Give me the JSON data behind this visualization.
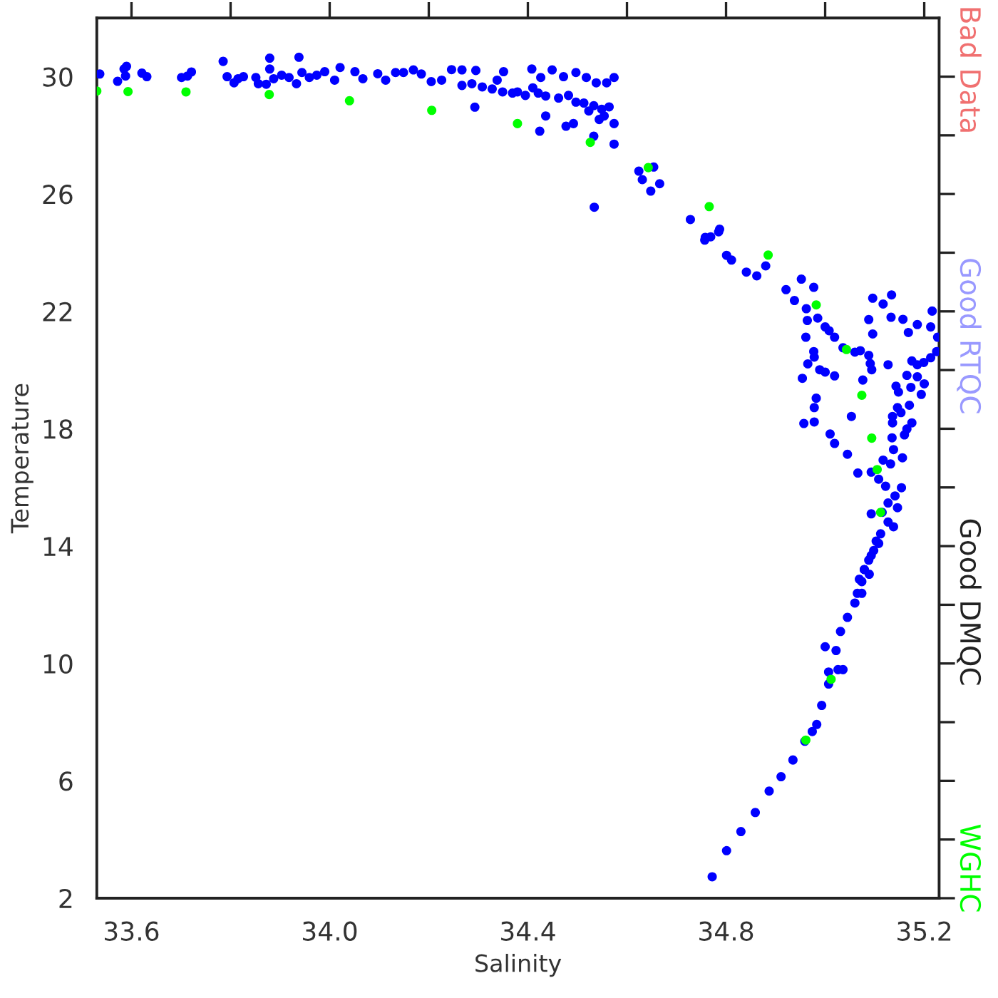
{
  "chart_data": {
    "type": "scatter",
    "xlabel": "Salinity",
    "ylabel": "Temperature",
    "xlim": [
      33.53,
      35.23
    ],
    "ylim": [
      2,
      32
    ],
    "xticks": [
      {
        "value": 33.6,
        "label": "33.6"
      },
      {
        "value": 33.8,
        "label": null
      },
      {
        "value": 34.0,
        "label": "34.0"
      },
      {
        "value": 34.2,
        "label": null
      },
      {
        "value": 34.4,
        "label": "34.4"
      },
      {
        "value": 34.6,
        "label": null
      },
      {
        "value": 34.8,
        "label": "34.8"
      },
      {
        "value": 35.0,
        "label": null
      },
      {
        "value": 35.2,
        "label": "35.2"
      }
    ],
    "yticks": [
      2,
      {
        "value": 4,
        "label": null
      },
      6,
      {
        "value": 8,
        "label": null
      },
      10,
      {
        "value": 12,
        "label": null
      },
      14,
      {
        "value": 16,
        "label": null
      },
      18,
      {
        "value": 20,
        "label": null
      },
      22,
      {
        "value": 24,
        "label": null
      },
      26,
      {
        "value": 28,
        "label": null
      },
      30
    ],
    "grid": false,
    "legend": "right",
    "marker": "circle",
    "annotations": [
      "Bad Data",
      "Good RTQC",
      "Good DMQC"
    ],
    "series": [
      {
        "color": "#0000ff",
        "x": [
          33.536,
          33.572,
          33.585,
          33.59,
          33.588,
          33.621,
          33.631,
          33.701,
          33.713,
          33.721,
          33.785,
          33.793,
          33.807,
          33.815,
          33.826,
          33.851,
          33.856,
          33.872,
          33.879,
          33.879,
          33.887,
          33.903,
          33.918,
          33.933,
          33.938,
          33.944,
          33.959,
          33.974,
          33.99,
          34.01,
          34.021,
          34.051,
          34.067,
          34.097,
          34.113,
          34.133,
          34.149,
          34.169,
          34.185,
          34.205,
          34.226,
          34.246,
          34.267,
          34.267,
          34.287,
          34.295,
          34.308,
          34.328,
          34.338,
          34.349,
          34.351,
          34.369,
          34.379,
          34.395,
          34.408,
          34.41,
          34.421,
          34.426,
          34.436,
          34.449,
          34.462,
          34.472,
          34.482,
          34.497,
          34.497,
          34.513,
          34.518,
          34.523,
          34.533,
          34.538,
          34.544,
          34.549,
          34.554,
          34.559,
          34.564,
          34.574,
          34.574,
          34.574,
          34.533,
          34.477,
          34.492,
          34.436,
          34.424,
          34.293,
          34.534,
          34.624,
          34.631,
          34.648,
          34.654,
          34.666,
          34.728,
          34.757,
          34.785,
          34.769,
          34.758,
          34.787,
          34.801,
          34.811,
          34.841,
          34.862,
          34.88,
          34.921,
          34.952,
          34.938,
          34.962,
          34.977,
          34.964,
          34.985,
          35.0,
          35.008,
          35.019,
          34.961,
          34.977,
          34.978,
          34.965,
          34.989,
          35.0,
          35.019,
          34.954,
          34.982,
          34.978,
          34.957,
          34.978,
          35.01,
          35.019,
          35.045,
          35.036,
          35.06,
          35.071,
          35.088,
          35.091,
          35.094,
          35.076,
          35.053,
          35.096,
          35.117,
          35.134,
          35.088,
          35.096,
          35.133,
          35.157,
          35.168,
          35.186,
          35.213,
          35.216,
          35.227,
          35.225,
          35.213,
          35.199,
          35.186,
          35.175,
          35.165,
          35.186,
          35.2,
          35.194,
          35.173,
          35.143,
          35.148,
          35.127,
          35.17,
          35.146,
          35.153,
          35.136,
          35.175,
          35.136,
          35.165,
          35.16,
          35.135,
          35.138,
          35.156,
          35.117,
          35.132,
          35.093,
          35.066,
          35.108,
          35.122,
          35.154,
          35.141,
          35.127,
          35.146,
          35.115,
          35.093,
          35.127,
          35.138,
          35.112,
          35.103,
          35.098,
          35.088,
          35.079,
          35.074,
          35.065,
          35.108,
          35.093,
          35.089,
          35.074,
          35.06,
          35.045,
          35.031,
          35.022,
          35.0,
          35.026,
          35.007,
          34.993,
          34.983,
          34.974,
          34.959,
          34.935,
          34.911,
          34.887,
          34.859,
          34.83,
          34.801,
          34.772,
          35.036,
          35.007,
          35.069,
          35.079
        ],
        "values": [
          30.09,
          29.84,
          30.26,
          30.35,
          30.02,
          30.12,
          30.0,
          29.97,
          30.02,
          30.16,
          30.52,
          30.0,
          29.79,
          29.93,
          30.0,
          29.97,
          29.76,
          29.74,
          30.63,
          30.26,
          29.93,
          30.05,
          29.97,
          29.76,
          30.66,
          30.14,
          29.97,
          30.05,
          30.17,
          29.88,
          30.31,
          30.17,
          29.93,
          30.1,
          29.88,
          30.14,
          30.14,
          30.23,
          30.09,
          29.83,
          29.88,
          30.24,
          30.23,
          29.7,
          29.76,
          30.21,
          29.65,
          29.58,
          29.88,
          29.48,
          30.17,
          29.44,
          29.48,
          29.36,
          30.26,
          29.62,
          29.44,
          29.97,
          29.34,
          30.23,
          29.27,
          30.0,
          29.36,
          30.14,
          29.13,
          29.1,
          29.97,
          28.83,
          29.01,
          29.79,
          28.54,
          28.89,
          28.66,
          29.79,
          28.97,
          29.97,
          28.4,
          27.7,
          27.97,
          28.31,
          28.4,
          28.66,
          28.14,
          28.96,
          25.55,
          26.78,
          26.49,
          26.1,
          26.92,
          26.35,
          25.13,
          24.43,
          24.71,
          24.54,
          24.52,
          24.8,
          23.91,
          23.75,
          23.34,
          23.21,
          23.55,
          22.74,
          23.1,
          22.37,
          22.09,
          22.82,
          21.69,
          21.77,
          21.47,
          21.34,
          21.12,
          21.12,
          20.63,
          20.44,
          20.21,
          20.01,
          19.93,
          19.8,
          19.72,
          19.04,
          18.72,
          18.18,
          18.23,
          17.82,
          17.5,
          17.13,
          20.76,
          20.61,
          20.66,
          20.5,
          20.22,
          20.01,
          19.66,
          18.42,
          22.45,
          22.25,
          22.56,
          21.72,
          21.23,
          21.8,
          21.73,
          21.28,
          21.55,
          21.47,
          22.01,
          21.12,
          20.63,
          20.42,
          20.26,
          20.18,
          20.31,
          19.82,
          19.77,
          19.53,
          19.17,
          19.41,
          19.45,
          19.25,
          20.18,
          18.8,
          18.72,
          18.55,
          18.42,
          18.2,
          18.2,
          17.99,
          17.79,
          17.69,
          17.29,
          17.01,
          16.93,
          16.8,
          16.52,
          16.49,
          16.28,
          16.04,
          15.99,
          15.71,
          15.47,
          15.31,
          15.15,
          15.1,
          14.82,
          14.66,
          14.42,
          14.17,
          13.85,
          13.52,
          13.2,
          12.79,
          12.39,
          14.09,
          13.68,
          13.04,
          12.39,
          12.06,
          11.57,
          11.09,
          10.44,
          10.57,
          9.79,
          9.3,
          8.57,
          7.92,
          7.68,
          7.35,
          6.71,
          6.14,
          5.65,
          4.92,
          4.27,
          3.62,
          2.73,
          9.79,
          9.71,
          12.87,
          13.2
        ]
      },
      {
        "name": "WGHC",
        "color": "#00ff00",
        "x": [
          33.53,
          33.593,
          33.71,
          33.878,
          34.04,
          34.206,
          34.379,
          34.526,
          34.643,
          34.766,
          34.885,
          34.982,
          35.043,
          35.074,
          35.094,
          35.105,
          35.112,
          34.961,
          35.012
        ],
        "values": [
          29.51,
          29.49,
          29.48,
          29.39,
          29.18,
          28.85,
          28.4,
          27.76,
          26.9,
          25.57,
          23.92,
          22.22,
          20.7,
          19.14,
          17.68,
          16.61,
          15.15,
          7.39,
          9.46
        ]
      }
    ]
  }
}
